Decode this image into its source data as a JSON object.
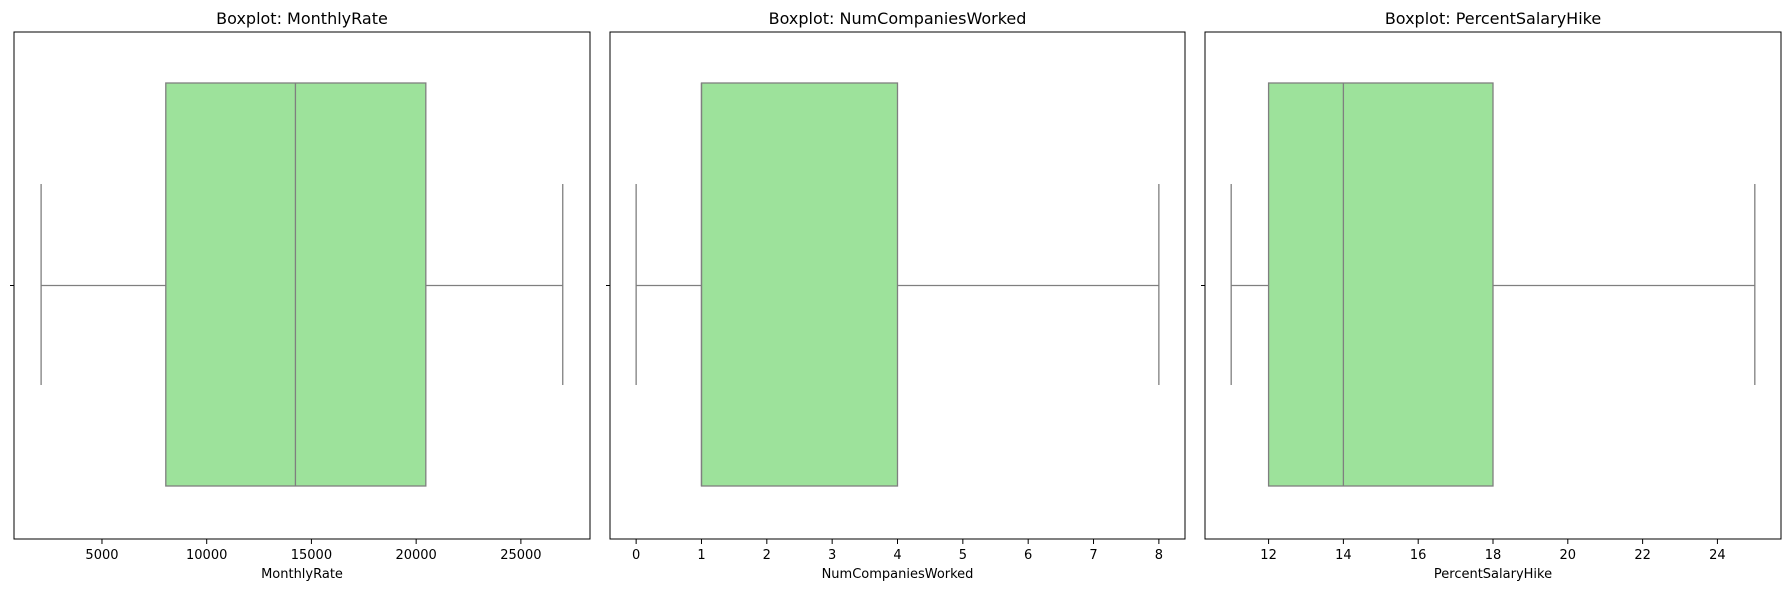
{
  "box_color": "#9de29b",
  "line_color": "#7f7f7f",
  "chart_data": [
    {
      "type": "box",
      "title": "Boxplot: MonthlyRate",
      "xlabel": "MonthlyRate",
      "ylabel": "",
      "xlim": [
        800,
        28300
      ],
      "xticks": [
        5000,
        10000,
        15000,
        20000,
        25000
      ],
      "xtick_labels": [
        "5000",
        "10000",
        "15000",
        "20000",
        "25000"
      ],
      "box": {
        "whisker_low": 2094,
        "q1": 8047,
        "median": 14236,
        "q3": 20462,
        "whisker_high": 26999
      },
      "grid": false
    },
    {
      "type": "box",
      "title": "Boxplot: NumCompaniesWorked",
      "xlabel": "NumCompaniesWorked",
      "ylabel": "",
      "xlim": [
        -0.4,
        8.4
      ],
      "xticks": [
        0,
        1,
        2,
        3,
        4,
        5,
        6,
        7,
        8
      ],
      "xtick_labels": [
        "0",
        "1",
        "2",
        "3",
        "4",
        "5",
        "6",
        "7",
        "8"
      ],
      "box": {
        "whisker_low": 0,
        "q1": 1,
        "median": 1,
        "q3": 4,
        "whisker_high": 8
      },
      "grid": false
    },
    {
      "type": "box",
      "title": "Boxplot: PercentSalaryHike",
      "xlabel": "PercentSalaryHike",
      "ylabel": "",
      "xlim": [
        10.3,
        25.7
      ],
      "xticks": [
        12,
        14,
        16,
        18,
        20,
        22,
        24
      ],
      "xtick_labels": [
        "12",
        "14",
        "16",
        "18",
        "20",
        "22",
        "24"
      ],
      "box": {
        "whisker_low": 11,
        "q1": 12,
        "median": 14,
        "q3": 18,
        "whisker_high": 25
      },
      "grid": false
    }
  ]
}
